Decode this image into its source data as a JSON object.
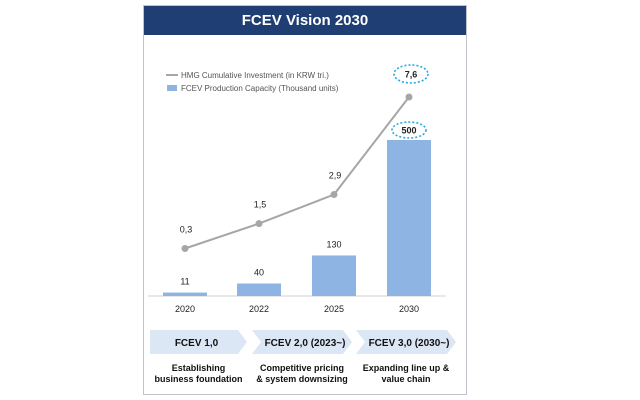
{
  "header": {
    "title": "FCEV Vision 2030"
  },
  "legend": {
    "line_label": "HMG Cumulative Investment (in KRW tri.)",
    "bar_label": "FCEV Production Capacity (Thousand units)"
  },
  "colors": {
    "title_bg": "#1f3f74",
    "bar": "#8eb4e3",
    "line": "#a6a6a6",
    "highlight": "#27a9e1",
    "phase_arrow": "#dbe7f4"
  },
  "chart_data": {
    "type": "bar",
    "categories": [
      "2020",
      "2022",
      "2025",
      "2030"
    ],
    "series": [
      {
        "name": "FCEV Production Capacity (Thousand units)",
        "type": "bar",
        "values": [
          11,
          40,
          130,
          500
        ],
        "labels": [
          "11",
          "40",
          "130",
          "500"
        ]
      },
      {
        "name": "HMG Cumulative Investment (in KRW tri.)",
        "type": "line",
        "values": [
          0.3,
          1.5,
          2.9,
          7.6
        ],
        "labels": [
          "0,3",
          "1,5",
          "2,9",
          "7,6"
        ]
      }
    ],
    "highlighted": [
      "500",
      "7,6"
    ],
    "legend_position": "top-left",
    "grid": false
  },
  "phases": [
    {
      "label": "FCEV 1,0",
      "desc": [
        "Establishing",
        "business foundation"
      ]
    },
    {
      "label": "FCEV 2,0 (2023~)",
      "desc": [
        "Competitive pricing",
        "& system downsizing"
      ]
    },
    {
      "label": "FCEV 3,0 (2030~)",
      "desc": [
        "Expanding line up &",
        "value chain"
      ]
    }
  ]
}
